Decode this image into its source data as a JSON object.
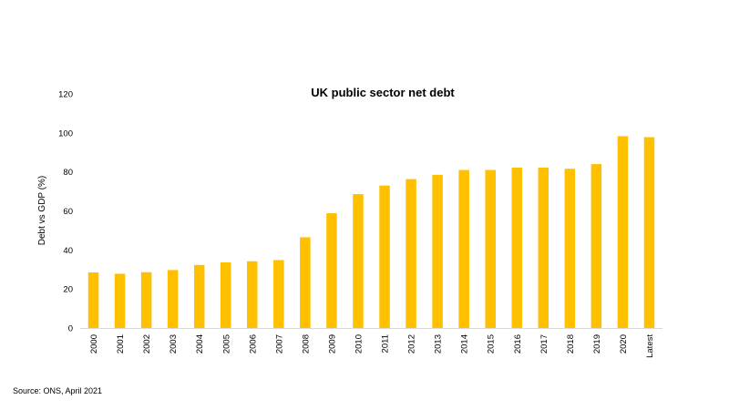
{
  "chart_data": {
    "type": "bar",
    "title": "UK public sector net debt",
    "xlabel": "",
    "ylabel": "Debt vs GDP (%)",
    "ylim": [
      0,
      120
    ],
    "yticks": [
      0,
      20,
      40,
      60,
      80,
      100,
      120
    ],
    "categories": [
      "2000",
      "2001",
      "2002",
      "2003",
      "2004",
      "2005",
      "2006",
      "2007",
      "2008",
      "2009",
      "2010",
      "2011",
      "2012",
      "2013",
      "2014",
      "2015",
      "2016",
      "2017",
      "2018",
      "2019",
      "2020",
      "Latest"
    ],
    "values": [
      28.5,
      27.8,
      28.6,
      29.7,
      32.3,
      33.6,
      34.2,
      34.8,
      46.5,
      58.8,
      68.6,
      73,
      76.3,
      78.5,
      81,
      81,
      82.2,
      82.2,
      81.6,
      84,
      98.3,
      97.8
    ],
    "bar_color": "#FFC000",
    "grid": false,
    "legend": "none",
    "source": "Source: ONS, April 2021"
  }
}
